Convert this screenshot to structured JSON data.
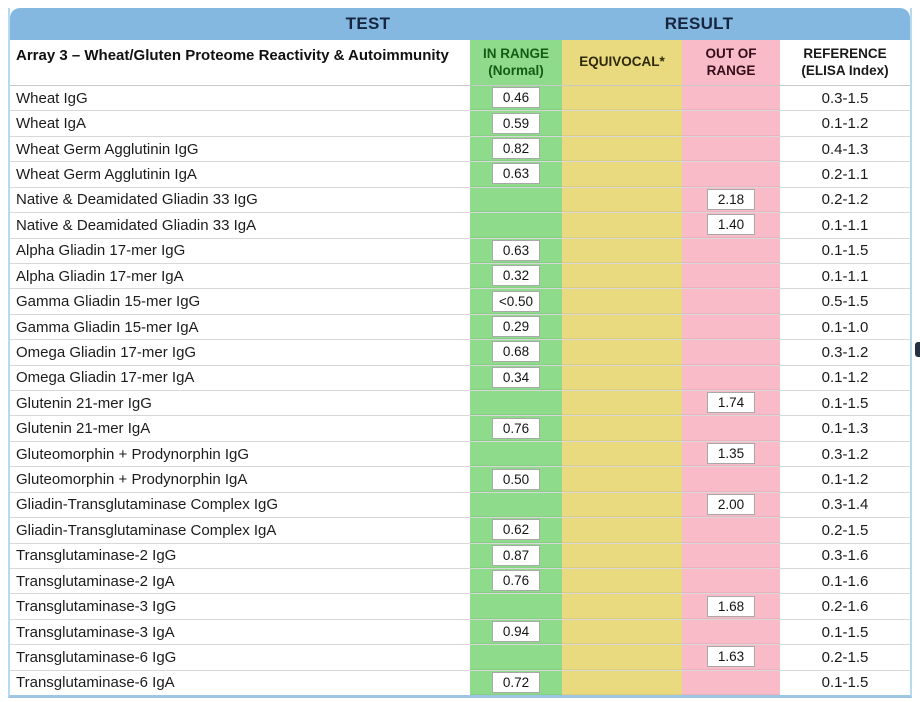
{
  "header": {
    "test_label": "TEST",
    "result_label": "RESULT"
  },
  "colors": {
    "header_blue": "#85b8e0",
    "in_range_green": "#8edc8b",
    "equivocal_yellow": "#e9da80",
    "out_of_range_pink": "#f8bbc7",
    "table_border_blue": "#b6dbee"
  },
  "table": {
    "group_title": "Array 3 – Wheat/Gluten Proteome Reactivity & Autoimmunity",
    "column_headers": {
      "in_range_line1": "IN RANGE",
      "in_range_line2": "(Normal)",
      "equivocal": "EQUIVOCAL*",
      "out_of_range_line1": "OUT OF",
      "out_of_range_line2": "RANGE",
      "reference_line1": "REFERENCE",
      "reference_line2": "(ELISA Index)"
    },
    "rows": [
      {
        "test": "Wheat IgG",
        "in_range": "0.46",
        "equivocal": "",
        "out_of_range": "",
        "reference": "0.3-1.5"
      },
      {
        "test": "Wheat IgA",
        "in_range": "0.59",
        "equivocal": "",
        "out_of_range": "",
        "reference": "0.1-1.2"
      },
      {
        "test": "Wheat Germ Agglutinin IgG",
        "in_range": "0.82",
        "equivocal": "",
        "out_of_range": "",
        "reference": "0.4-1.3"
      },
      {
        "test": "Wheat Germ Agglutinin IgA",
        "in_range": "0.63",
        "equivocal": "",
        "out_of_range": "",
        "reference": "0.2-1.1"
      },
      {
        "test": "Native & Deamidated Gliadin 33 IgG",
        "in_range": "",
        "equivocal": "",
        "out_of_range": "2.18",
        "reference": "0.2-1.2"
      },
      {
        "test": "Native & Deamidated Gliadin 33 IgA",
        "in_range": "",
        "equivocal": "",
        "out_of_range": "1.40",
        "reference": "0.1-1.1"
      },
      {
        "test": "Alpha Gliadin 17-mer IgG",
        "in_range": "0.63",
        "equivocal": "",
        "out_of_range": "",
        "reference": "0.1-1.5"
      },
      {
        "test": "Alpha Gliadin 17-mer IgA",
        "in_range": "0.32",
        "equivocal": "",
        "out_of_range": "",
        "reference": "0.1-1.1"
      },
      {
        "test": "Gamma Gliadin 15-mer IgG",
        "in_range": "<0.50",
        "equivocal": "",
        "out_of_range": "",
        "reference": "0.5-1.5"
      },
      {
        "test": "Gamma Gliadin 15-mer IgA",
        "in_range": "0.29",
        "equivocal": "",
        "out_of_range": "",
        "reference": "0.1-1.0"
      },
      {
        "test": "Omega Gliadin 17-mer IgG",
        "in_range": "0.68",
        "equivocal": "",
        "out_of_range": "",
        "reference": "0.3-1.2"
      },
      {
        "test": "Omega Gliadin 17-mer IgA",
        "in_range": "0.34",
        "equivocal": "",
        "out_of_range": "",
        "reference": "0.1-1.2"
      },
      {
        "test": "Glutenin 21-mer IgG",
        "in_range": "",
        "equivocal": "",
        "out_of_range": "1.74",
        "reference": "0.1-1.5"
      },
      {
        "test": "Glutenin 21-mer IgA",
        "in_range": "0.76",
        "equivocal": "",
        "out_of_range": "",
        "reference": "0.1-1.3"
      },
      {
        "test": "Gluteomorphin + Prodynorphin IgG",
        "in_range": "",
        "equivocal": "",
        "out_of_range": "1.35",
        "reference": "0.3-1.2"
      },
      {
        "test": "Gluteomorphin + Prodynorphin IgA",
        "in_range": "0.50",
        "equivocal": "",
        "out_of_range": "",
        "reference": "0.1-1.2"
      },
      {
        "test": "Gliadin-Transglutaminase Complex IgG",
        "in_range": "",
        "equivocal": "",
        "out_of_range": "2.00",
        "reference": "0.3-1.4"
      },
      {
        "test": "Gliadin-Transglutaminase Complex IgA",
        "in_range": "0.62",
        "equivocal": "",
        "out_of_range": "",
        "reference": "0.2-1.5"
      },
      {
        "test": "Transglutaminase-2 IgG",
        "in_range": "0.87",
        "equivocal": "",
        "out_of_range": "",
        "reference": "0.3-1.6"
      },
      {
        "test": "Transglutaminase-2 IgA",
        "in_range": "0.76",
        "equivocal": "",
        "out_of_range": "",
        "reference": "0.1-1.6"
      },
      {
        "test": "Transglutaminase-3 IgG",
        "in_range": "",
        "equivocal": "",
        "out_of_range": "1.68",
        "reference": "0.2-1.6"
      },
      {
        "test": "Transglutaminase-3 IgA",
        "in_range": "0.94",
        "equivocal": "",
        "out_of_range": "",
        "reference": "0.1-1.5"
      },
      {
        "test": "Transglutaminase-6 IgG",
        "in_range": "",
        "equivocal": "",
        "out_of_range": "1.63",
        "reference": "0.2-1.5"
      },
      {
        "test": "Transglutaminase-6 IgA",
        "in_range": "0.72",
        "equivocal": "",
        "out_of_range": "",
        "reference": "0.1-1.5"
      }
    ]
  }
}
